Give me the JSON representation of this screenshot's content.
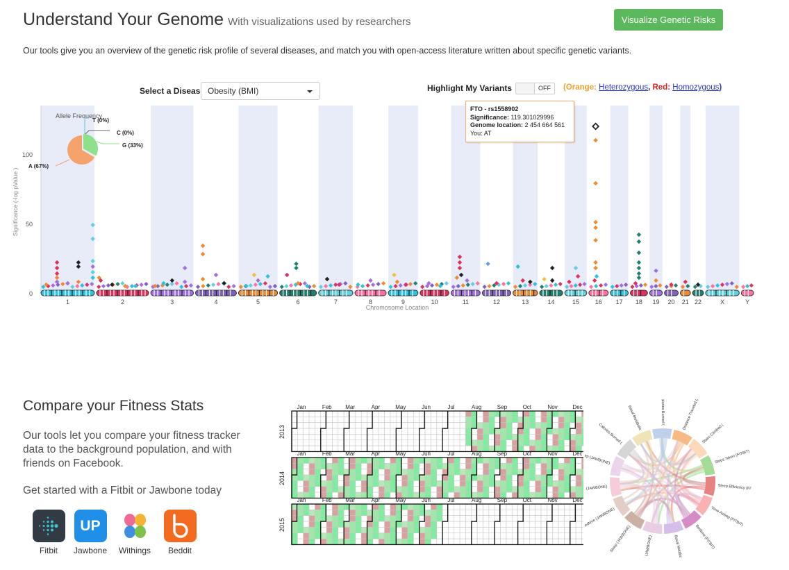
{
  "header": {
    "title": "Understand Your Genome",
    "subtitle": "With visualizations used by researchers",
    "button_label": "Visualize Genetic Risks",
    "intro": "Our tools give you an overview of the genetic risk profile of several diseases, and match you with open-access literature written about specific genetic variants."
  },
  "controls": {
    "disease_label": "Select a Disease",
    "disease_value": "Obesity (BMI)",
    "highlight_label": "Highlight My Variants",
    "toggle_value": "OFF",
    "legend_prefix": "(",
    "legend_orange": "Orange:",
    "legend_het": "Heterozygous",
    "legend_red": "Red:",
    "legend_hom": "Homozygous",
    "legend_suffix": ")"
  },
  "tooltip": {
    "snp": "FTO - rs1558902",
    "sig_label": "Significance:",
    "sig_value": "119.301029996",
    "loc_label": "Genome location:",
    "loc_value": "2 454 664 561",
    "you_label": "You:",
    "you_value": "AT"
  },
  "allele_pie": {
    "title": "Allele Frequency",
    "labels": [
      "T (0%)",
      "C (0%)",
      "G (33%)",
      "A (67%)"
    ]
  },
  "chart_data": [
    {
      "type": "scatter",
      "title": "",
      "xlabel": "Chromosome Location",
      "ylabel": "Significance (-log pValue )",
      "ylim": [
        0,
        135
      ],
      "yticks": [
        0,
        50,
        100
      ],
      "chromosomes": [
        "1",
        "2",
        "3",
        "4",
        "5",
        "6",
        "7",
        "8",
        "9",
        "10",
        "11",
        "12",
        "13",
        "14",
        "15",
        "16",
        "17",
        "18",
        "19",
        "20",
        "21",
        "22",
        "X",
        "Y"
      ],
      "chrom_sizes": [
        248,
        242,
        198,
        190,
        181,
        171,
        159,
        145,
        138,
        134,
        135,
        133,
        114,
        107,
        102,
        90,
        83,
        80,
        59,
        64,
        47,
        51,
        156,
        57
      ],
      "grid": false,
      "points": [
        {
          "chr": "16",
          "x": 0.35,
          "y": 120,
          "c": "#222",
          "s": "hollow"
        },
        {
          "chr": "16",
          "x": 0.35,
          "y": 110,
          "c": "#f08a30"
        },
        {
          "chr": "16",
          "x": 0.35,
          "y": 79,
          "c": "#f08a30"
        },
        {
          "chr": "16",
          "x": 0.35,
          "y": 51,
          "c": "#f08a30"
        },
        {
          "chr": "16",
          "x": 0.35,
          "y": 47,
          "c": "#f08a30"
        },
        {
          "chr": "16",
          "x": 0.35,
          "y": 38,
          "c": "#f08a30"
        },
        {
          "chr": "16",
          "x": 0.35,
          "y": 22,
          "c": "#f08a30"
        },
        {
          "chr": "16",
          "x": 0.35,
          "y": 18,
          "c": "#f08a30"
        },
        {
          "chr": "16",
          "x": 0.4,
          "y": 12,
          "c": "#30c0e0"
        },
        {
          "chr": "16",
          "x": 0.3,
          "y": 9,
          "c": "#e03060"
        },
        {
          "chr": "1",
          "x": 0.97,
          "y": 49,
          "c": "#60d0e0"
        },
        {
          "chr": "1",
          "x": 0.97,
          "y": 39,
          "c": "#60d0e0"
        },
        {
          "chr": "1",
          "x": 0.97,
          "y": 23,
          "c": "#60d0e0"
        },
        {
          "chr": "1",
          "x": 0.97,
          "y": 19,
          "c": "#a070e0"
        },
        {
          "chr": "1",
          "x": 0.97,
          "y": 15,
          "c": "#60d0e0"
        },
        {
          "chr": "1",
          "x": 0.97,
          "y": 11,
          "c": "#30c0e0"
        },
        {
          "chr": "1",
          "x": 0.3,
          "y": 22,
          "c": "#e03060"
        },
        {
          "chr": "1",
          "x": 0.3,
          "y": 18,
          "c": "#e03060"
        },
        {
          "chr": "1",
          "x": 0.3,
          "y": 14,
          "c": "#e03060"
        },
        {
          "chr": "1",
          "x": 0.3,
          "y": 11,
          "c": "#f08a30"
        },
        {
          "chr": "1",
          "x": 0.3,
          "y": 8,
          "c": "#a070e0"
        },
        {
          "chr": "1",
          "x": 0.7,
          "y": 22,
          "c": "#222"
        },
        {
          "chr": "1",
          "x": 0.7,
          "y": 19,
          "c": "#222"
        },
        {
          "chr": "1",
          "x": 0.7,
          "y": 8,
          "c": "#f08a30"
        },
        {
          "chr": "1",
          "x": 0.1,
          "y": 6,
          "c": "#f08a30"
        },
        {
          "chr": "1",
          "x": 0.5,
          "y": 7,
          "c": "#a070e0"
        },
        {
          "chr": "2",
          "x": 0.05,
          "y": 11,
          "c": "#f08a30"
        },
        {
          "chr": "2",
          "x": 0.08,
          "y": 9,
          "c": "#e03060"
        },
        {
          "chr": "2",
          "x": 0.3,
          "y": 6,
          "c": "#222"
        },
        {
          "chr": "2",
          "x": 0.55,
          "y": 5,
          "c": "#f08a30"
        },
        {
          "chr": "2",
          "x": 0.75,
          "y": 5,
          "c": "#30c0e0"
        },
        {
          "chr": "3",
          "x": 0.1,
          "y": 5,
          "c": "#f08a30"
        },
        {
          "chr": "3",
          "x": 0.3,
          "y": 7,
          "c": "#30c0e0"
        },
        {
          "chr": "3",
          "x": 0.5,
          "y": 9,
          "c": "#222"
        },
        {
          "chr": "3",
          "x": 0.8,
          "y": 18,
          "c": "#a070e0"
        },
        {
          "chr": "3",
          "x": 0.8,
          "y": 8,
          "c": "#a070e0"
        },
        {
          "chr": "4",
          "x": 0.18,
          "y": 34,
          "c": "#f08a30"
        },
        {
          "chr": "4",
          "x": 0.18,
          "y": 28,
          "c": "#f08a30"
        },
        {
          "chr": "4",
          "x": 0.18,
          "y": 10,
          "c": "#f08a30"
        },
        {
          "chr": "4",
          "x": 0.5,
          "y": 13,
          "c": "#a070e0"
        },
        {
          "chr": "4",
          "x": 0.7,
          "y": 7,
          "c": "#222"
        },
        {
          "chr": "5",
          "x": 0.2,
          "y": 5,
          "c": "#30c0e0"
        },
        {
          "chr": "5",
          "x": 0.4,
          "y": 13,
          "c": "#f0c040"
        },
        {
          "chr": "5",
          "x": 0.5,
          "y": 9,
          "c": "#a070e0"
        },
        {
          "chr": "5",
          "x": 0.75,
          "y": 12,
          "c": "#30c0e0"
        },
        {
          "chr": "6",
          "x": 0.2,
          "y": 13,
          "c": "#e03060"
        },
        {
          "chr": "6",
          "x": 0.45,
          "y": 21,
          "c": "#208070"
        },
        {
          "chr": "6",
          "x": 0.45,
          "y": 18,
          "c": "#208070"
        },
        {
          "chr": "6",
          "x": 0.5,
          "y": 7,
          "c": "#f08a30"
        },
        {
          "chr": "6",
          "x": 0.75,
          "y": 5,
          "c": "#30c0e0"
        },
        {
          "chr": "7",
          "x": 0.25,
          "y": 10,
          "c": "#222"
        },
        {
          "chr": "7",
          "x": 0.6,
          "y": 6,
          "c": "#e03060"
        },
        {
          "chr": "8",
          "x": 0.1,
          "y": 6,
          "c": "#30c0e0"
        },
        {
          "chr": "8",
          "x": 0.5,
          "y": 9,
          "c": "#a070e0"
        },
        {
          "chr": "9",
          "x": 0.2,
          "y": 13,
          "c": "#f0c040"
        },
        {
          "chr": "9",
          "x": 0.3,
          "y": 8,
          "c": "#f08a30"
        },
        {
          "chr": "9",
          "x": 0.6,
          "y": 6,
          "c": "#e03060"
        },
        {
          "chr": "10",
          "x": 0.3,
          "y": 7,
          "c": "#a070e0"
        },
        {
          "chr": "10",
          "x": 0.7,
          "y": 5,
          "c": "#30c0e0"
        },
        {
          "chr": "11",
          "x": 0.3,
          "y": 26,
          "c": "#e03060"
        },
        {
          "chr": "11",
          "x": 0.3,
          "y": 22,
          "c": "#e03060"
        },
        {
          "chr": "11",
          "x": 0.3,
          "y": 18,
          "c": "#e03060"
        },
        {
          "chr": "11",
          "x": 0.35,
          "y": 13,
          "c": "#222"
        },
        {
          "chr": "11",
          "x": 0.2,
          "y": 11,
          "c": "#f08a30"
        },
        {
          "chr": "11",
          "x": 0.55,
          "y": 9,
          "c": "#a070e0"
        },
        {
          "chr": "12",
          "x": 0.2,
          "y": 21,
          "c": "#60a0e0"
        },
        {
          "chr": "12",
          "x": 0.5,
          "y": 7,
          "c": "#e03060"
        },
        {
          "chr": "13",
          "x": 0.2,
          "y": 19,
          "c": "#30c0e0"
        },
        {
          "chr": "13",
          "x": 0.4,
          "y": 9,
          "c": "#e03060"
        },
        {
          "chr": "13",
          "x": 0.7,
          "y": 8,
          "c": "#222"
        },
        {
          "chr": "14",
          "x": 0.2,
          "y": 10,
          "c": "#f0c040"
        },
        {
          "chr": "14",
          "x": 0.55,
          "y": 18,
          "c": "#222"
        },
        {
          "chr": "14",
          "x": 0.55,
          "y": 9,
          "c": "#222"
        },
        {
          "chr": "15",
          "x": 0.2,
          "y": 8,
          "c": "#e03060"
        },
        {
          "chr": "15",
          "x": 0.5,
          "y": 18,
          "c": "#60d0e0"
        },
        {
          "chr": "15",
          "x": 0.6,
          "y": 12,
          "c": "#e03060"
        },
        {
          "chr": "18",
          "x": 0.5,
          "y": 42,
          "c": "#208070"
        },
        {
          "chr": "18",
          "x": 0.5,
          "y": 37,
          "c": "#208070"
        },
        {
          "chr": "18",
          "x": 0.5,
          "y": 29,
          "c": "#208070"
        },
        {
          "chr": "18",
          "x": 0.5,
          "y": 22,
          "c": "#208070"
        },
        {
          "chr": "18",
          "x": 0.5,
          "y": 18,
          "c": "#208070"
        },
        {
          "chr": "18",
          "x": 0.5,
          "y": 14,
          "c": "#208070"
        },
        {
          "chr": "18",
          "x": 0.5,
          "y": 11,
          "c": "#208070"
        },
        {
          "chr": "18",
          "x": 0.3,
          "y": 7,
          "c": "#e03060"
        },
        {
          "chr": "19",
          "x": 0.5,
          "y": 16,
          "c": "#a070e0"
        },
        {
          "chr": "19",
          "x": 0.5,
          "y": 9,
          "c": "#f08a30"
        },
        {
          "chr": "20",
          "x": 0.5,
          "y": 6,
          "c": "#e03060"
        },
        {
          "chr": "21",
          "x": 0.5,
          "y": 8,
          "c": "#e03060"
        },
        {
          "chr": "22",
          "x": 0.5,
          "y": 6,
          "c": "#222"
        }
      ]
    },
    {
      "type": "heatmap",
      "title": "",
      "years": [
        "2013",
        "2014",
        "2015"
      ],
      "months": [
        "Jan",
        "Feb",
        "Mar",
        "Apr",
        "May",
        "Jun",
        "Jul",
        "Aug",
        "Sep",
        "Oct",
        "Nov",
        "Dec"
      ],
      "active_weeks": [
        [
          31,
          52
        ],
        [
          1,
          52
        ],
        [
          1,
          26
        ]
      ],
      "colors": [
        "#ffffff",
        "#7eeda0",
        "#9ee8a8",
        "#d9a0a0",
        "#c98f8f"
      ]
    },
    {
      "type": "chord",
      "title": "",
      "labels": [
        "Distance Traveled (FITBIT)",
        "Stairs Climbed (",
        "Steps Taken (FITBIT)",
        "Sleep Efficiency (FITBIT)",
        "Time Asleep (FITBIT)",
        "Bedtime (FITBIT)",
        "Basal Metabolic",
        "Steps Traveled (JAWBONE)",
        "Sleep (JAWBONE)",
        "Bedtime (JAWBONE)",
        "Distance (JAWBONE)",
        "Time Asleep (JAWBONE)",
        "Calories Burned (",
        "Basal Metabolic",
        "Calories Burned ("
      ],
      "colors": [
        "#f6b278",
        "#fdd5b4",
        "#98d88a",
        "#e57373",
        "#f8a8a8",
        "#d07ec0",
        "#d0b8e8",
        "#e8c8e0",
        "#c4a89a",
        "#e0c8c0",
        "#f5c6d6",
        "#e8d0e8",
        "#d0d0d0",
        "#f0e0b0",
        "#b8cce8"
      ]
    }
  ],
  "fitness": {
    "title": "Compare your Fitness Stats",
    "description": "Our tools let you compare your fitness tracker data to the background population, and with friends on Facebook.",
    "cta": "Get started with a Fitbit or Jawbone today",
    "apps": [
      {
        "name": "Fitbit",
        "icon": "fitbit-icon",
        "color": "#323a43"
      },
      {
        "name": "Jawbone",
        "icon": "jawbone-icon",
        "color": "#1f8fe8"
      },
      {
        "name": "Withings",
        "icon": "withings-icon",
        "color": "#ffffff"
      },
      {
        "name": "Beddit",
        "icon": "beddit-icon",
        "color": "#f36b21"
      }
    ],
    "jawbone_text": "UP"
  }
}
